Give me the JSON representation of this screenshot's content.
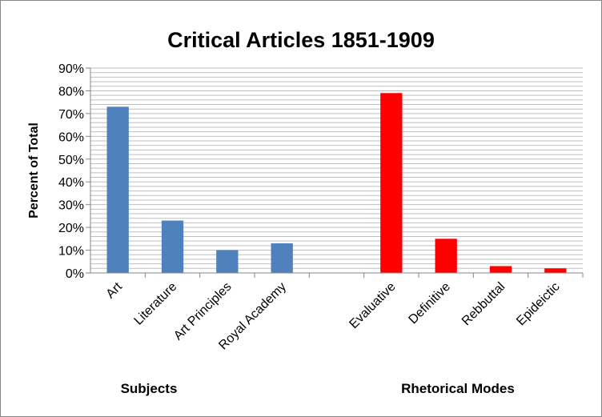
{
  "chart_data": {
    "type": "bar",
    "title": "Critical Articles 1851-1909",
    "ylabel": "Percent of Total",
    "ylim": [
      0,
      90
    ],
    "y_ticks": [
      "0%",
      "10%",
      "20%",
      "30%",
      "40%",
      "50%",
      "60%",
      "70%",
      "80%",
      "90%"
    ],
    "grid": true,
    "categories": [
      "Art",
      "Literature",
      "Art Principles",
      "Royal Academy",
      "",
      "Evaluative",
      "Definitive",
      "Rebbuttal",
      "Epideictic"
    ],
    "series": [
      {
        "values": [
          73,
          23,
          10,
          13,
          null,
          79,
          15,
          3,
          2
        ],
        "colors": [
          "#4F81BD",
          "#4F81BD",
          "#4F81BD",
          "#4F81BD",
          null,
          "#FF0000",
          "#FF0000",
          "#FF0000",
          "#FF0000"
        ]
      }
    ],
    "group_labels": [
      "Subjects",
      "Rhetorical Modes"
    ]
  }
}
